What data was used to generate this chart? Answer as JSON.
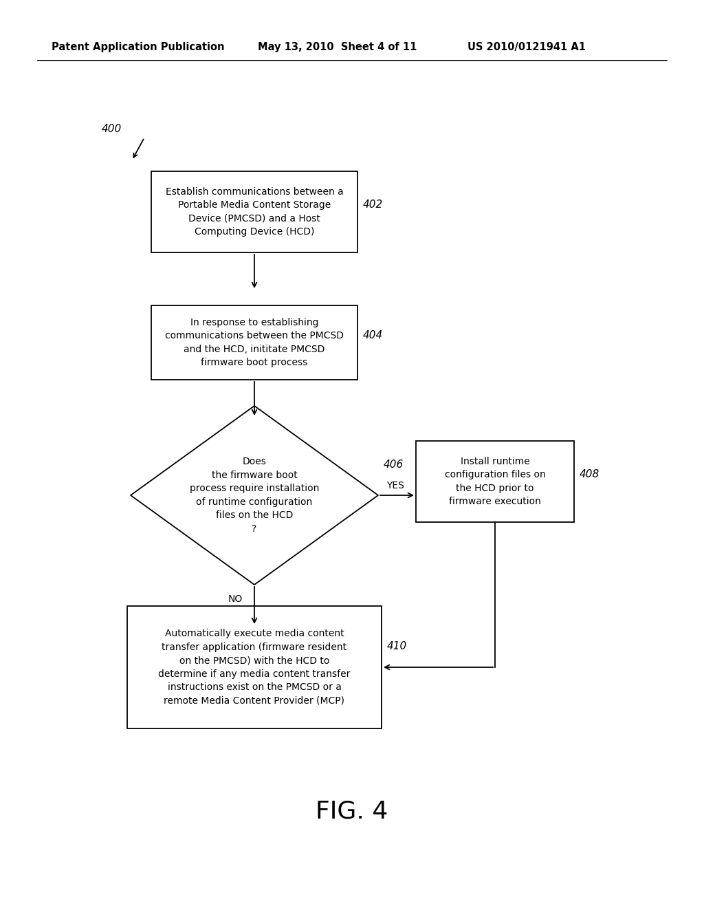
{
  "header_left": "Patent Application Publication",
  "header_mid": "May 13, 2010  Sheet 4 of 11",
  "header_right": "US 2010/0121941 A1",
  "fig_label": "FIG. 4",
  "diagram_label": "400",
  "box1_text": "Establish communications between a\nPortable Media Content Storage\nDevice (PMCSD) and a Host\nComputing Device (HCD)",
  "box1_label": "402",
  "box2_text": "In response to establishing\ncommunications between the PMCSD\nand the HCD, inititate PMCSD\nfirmware boot process",
  "box2_label": "404",
  "diamond_text": "Does\nthe firmware boot\nprocess require installation\nof runtime configuration\nfiles on the HCD\n?",
  "diamond_label": "406",
  "box3_text": "Install runtime\nconfiguration files on\nthe HCD prior to\nfirmware execution",
  "box3_label": "408",
  "box4_text": "Automatically execute media content\ntransfer application (firmware resident\non the PMCSD) with the HCD to\ndetermine if any media content transfer\ninstructions exist on the PMCSD or a\nremote Media Content Provider (MCP)",
  "box4_label": "410",
  "yes_label": "YES",
  "no_label": "NO",
  "bg_color": "#ffffff",
  "text_color": "#000000"
}
